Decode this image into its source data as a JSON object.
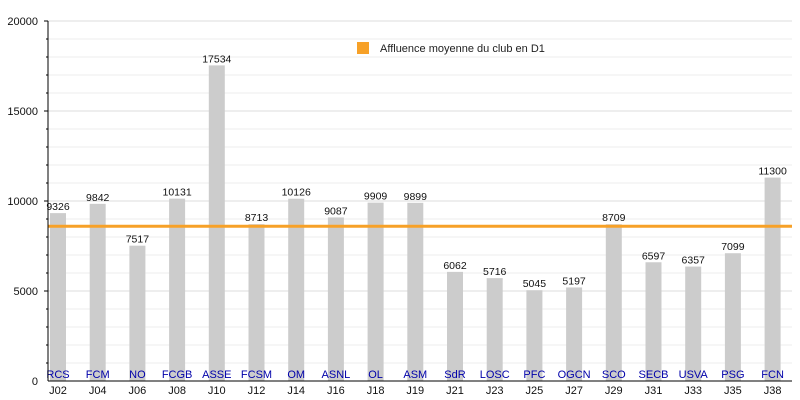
{
  "chart_data": {
    "type": "bar",
    "title": "",
    "xlabel": "",
    "ylabel": "",
    "ylim": [
      0,
      20000
    ],
    "yticks": [
      "0",
      "5000",
      "10000",
      "15000",
      "20000"
    ],
    "grid": true,
    "legend_position": "top-center",
    "categories": [
      "J02",
      "J04",
      "J06",
      "J08",
      "J10",
      "J12",
      "J14",
      "J16",
      "J18",
      "J19",
      "J21",
      "J23",
      "J25",
      "J27",
      "J29",
      "J31",
      "J33",
      "J35",
      "J38"
    ],
    "clubs": [
      "RCS",
      "FCM",
      "NO",
      "FCGB",
      "ASSE",
      "FCSM",
      "OM",
      "ASNL",
      "OL",
      "ASM",
      "SdR",
      "LOSC",
      "PFC",
      "OGCN",
      "SCO",
      "SECB",
      "USVA",
      "PSG",
      "FCN"
    ],
    "values": [
      9326,
      9842,
      7517,
      10131,
      17534,
      8713,
      10126,
      9087,
      9909,
      9899,
      6062,
      5716,
      5045,
      5197,
      8709,
      6597,
      6357,
      7099,
      11300
    ],
    "average_line": {
      "name": "Affluence moyenne du club en D1",
      "value": 8600,
      "color": "#f7a128"
    },
    "bar_color": "#cccccc",
    "club_label_color": "#0000aa"
  }
}
